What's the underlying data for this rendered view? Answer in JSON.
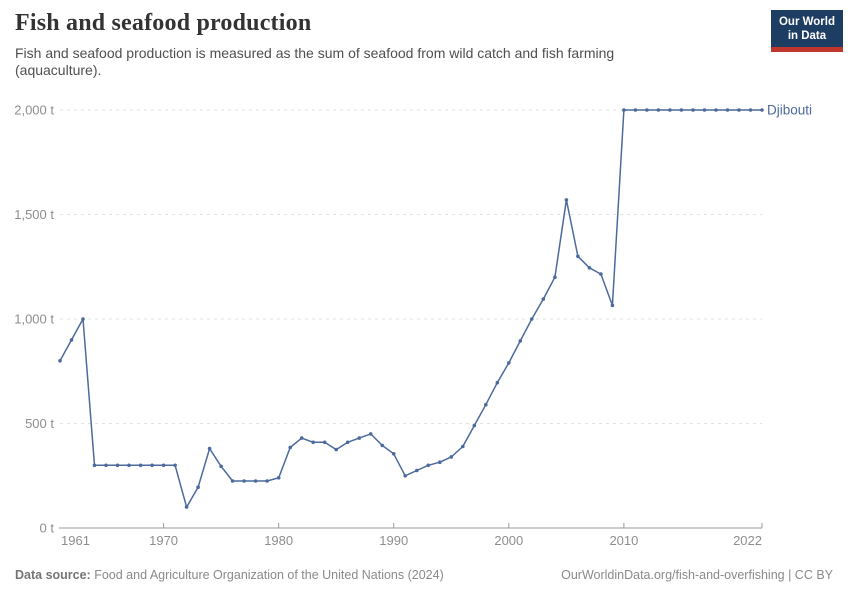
{
  "header": {
    "title": "Fish and seafood production",
    "subtitle": "Fish and seafood production is measured as the sum of seafood from wild catch and fish farming (aquaculture)."
  },
  "logo": {
    "line1": "Our World",
    "line2": "in Data",
    "bg_color": "#1d3d63",
    "bar_color": "#c0352c"
  },
  "chart_data": {
    "type": "line",
    "title": "Fish and seafood production",
    "entity": "Djibouti",
    "unit": "t",
    "xlabel": "",
    "ylabel": "",
    "xlim": [
      1961,
      2022
    ],
    "ylim": [
      0,
      2000
    ],
    "grid": "horizontal dashed",
    "legend_position": "end-of-line label",
    "line_color": "#4c6a9c",
    "entity_label_color": "#4c6a9c",
    "grid_color": "#e2e2e2",
    "axis_color": "#9a9a9a",
    "tick_label_color": "#8e8e8e",
    "x": [
      1961,
      1962,
      1963,
      1964,
      1965,
      1966,
      1967,
      1968,
      1969,
      1970,
      1971,
      1972,
      1973,
      1974,
      1975,
      1976,
      1977,
      1978,
      1979,
      1980,
      1981,
      1982,
      1983,
      1984,
      1985,
      1986,
      1987,
      1988,
      1989,
      1990,
      1991,
      1992,
      1993,
      1994,
      1995,
      1996,
      1997,
      1998,
      1999,
      2000,
      2001,
      2002,
      2003,
      2004,
      2005,
      2006,
      2007,
      2008,
      2009,
      2010,
      2011,
      2012,
      2013,
      2014,
      2015,
      2016,
      2017,
      2018,
      2019,
      2020,
      2021,
      2022
    ],
    "values": [
      800,
      900,
      1000,
      300,
      300,
      300,
      300,
      300,
      300,
      300,
      300,
      100,
      195,
      380,
      295,
      225,
      225,
      225,
      225,
      240,
      385,
      430,
      410,
      410,
      375,
      410,
      430,
      450,
      395,
      355,
      250,
      275,
      300,
      315,
      340,
      390,
      490,
      590,
      695,
      790,
      895,
      1000,
      1095,
      1200,
      1570,
      1300,
      1245,
      1215,
      1065,
      2000,
      2000,
      2000,
      2000,
      2000,
      2000,
      2000,
      2000,
      2000,
      2000,
      2000,
      2000,
      2000
    ],
    "y_ticks": [
      {
        "value": 0,
        "label": "0 t"
      },
      {
        "value": 500,
        "label": "500 t"
      },
      {
        "value": 1000,
        "label": "1,000 t"
      },
      {
        "value": 1500,
        "label": "1,500 t"
      },
      {
        "value": 2000,
        "label": "2,000 t"
      }
    ],
    "x_ticks": [
      {
        "value": 1961,
        "label": "1961",
        "anchor": "start",
        "tick": false
      },
      {
        "value": 1970,
        "label": "1970",
        "anchor": "middle",
        "tick": true
      },
      {
        "value": 1980,
        "label": "1980",
        "anchor": "middle",
        "tick": true
      },
      {
        "value": 1990,
        "label": "1990",
        "anchor": "middle",
        "tick": true
      },
      {
        "value": 2000,
        "label": "2000",
        "anchor": "middle",
        "tick": true
      },
      {
        "value": 2010,
        "label": "2010",
        "anchor": "middle",
        "tick": true
      },
      {
        "value": 2022,
        "label": "2022",
        "anchor": "end",
        "tick": true
      }
    ]
  },
  "footer": {
    "source_label": "Data source:",
    "source_text": "Food and Agriculture Organization of the United Nations (2024)",
    "link_text": "OurWorldinData.org/fish-and-overfishing | CC BY"
  }
}
